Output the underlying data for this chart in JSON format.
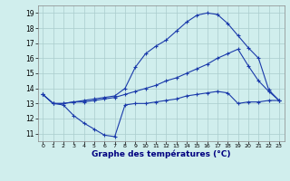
{
  "title": "Graphe des températures (°C)",
  "background_color": "#d0eeed",
  "grid_color": "#aacccc",
  "line_color": "#1a3aaa",
  "xlim": [
    -0.5,
    23.5
  ],
  "ylim": [
    10.5,
    19.5
  ],
  "xticks": [
    0,
    1,
    2,
    3,
    4,
    5,
    6,
    7,
    8,
    9,
    10,
    11,
    12,
    13,
    14,
    15,
    16,
    17,
    18,
    19,
    20,
    21,
    22,
    23
  ],
  "yticks": [
    11,
    12,
    13,
    14,
    15,
    16,
    17,
    18,
    19
  ],
  "series1_x": [
    0,
    1,
    2,
    3,
    4,
    5,
    6,
    7,
    8,
    9,
    10,
    11,
    12,
    13,
    14,
    15,
    16,
    17,
    18,
    19,
    20,
    21,
    22,
    23
  ],
  "series1_y": [
    13.6,
    13.0,
    12.9,
    12.2,
    11.7,
    11.3,
    10.9,
    10.8,
    12.9,
    13.0,
    13.0,
    13.1,
    13.2,
    13.3,
    13.5,
    13.6,
    13.7,
    13.8,
    13.7,
    13.0,
    13.1,
    13.1,
    13.2,
    13.2
  ],
  "series2_x": [
    0,
    1,
    2,
    3,
    4,
    5,
    6,
    7,
    8,
    9,
    10,
    11,
    12,
    13,
    14,
    15,
    16,
    17,
    18,
    19,
    20,
    21,
    22,
    23
  ],
  "series2_y": [
    13.6,
    13.0,
    13.0,
    13.1,
    13.1,
    13.2,
    13.3,
    13.4,
    13.6,
    13.8,
    14.0,
    14.2,
    14.5,
    14.7,
    15.0,
    15.3,
    15.6,
    16.0,
    16.3,
    16.6,
    15.5,
    14.5,
    13.8,
    13.2
  ],
  "series3_x": [
    0,
    1,
    2,
    3,
    4,
    5,
    6,
    7,
    8,
    9,
    10,
    11,
    12,
    13,
    14,
    15,
    16,
    17,
    18,
    19,
    20,
    21,
    22,
    23
  ],
  "series3_y": [
    13.6,
    13.0,
    13.0,
    13.1,
    13.2,
    13.3,
    13.4,
    13.5,
    14.0,
    15.4,
    16.3,
    16.8,
    17.2,
    17.8,
    18.4,
    18.85,
    19.0,
    18.9,
    18.3,
    17.5,
    16.7,
    16.0,
    13.9,
    13.2
  ]
}
